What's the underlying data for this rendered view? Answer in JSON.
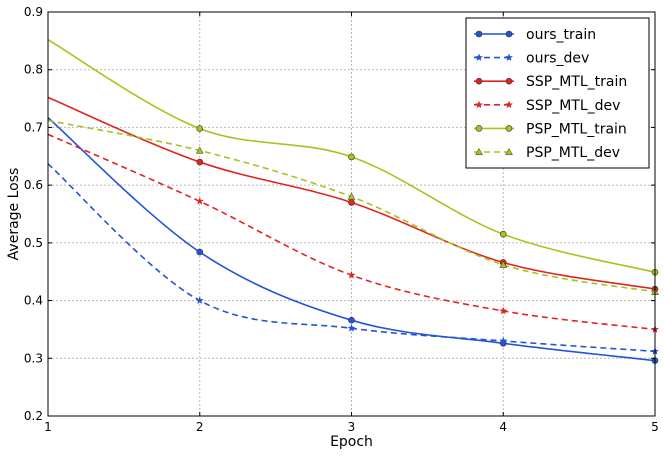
{
  "chart_data": {
    "type": "line",
    "title": "",
    "xlabel": "Epoch",
    "ylabel": "Average Loss",
    "xlim": [
      1,
      5
    ],
    "ylim": [
      0.2,
      0.9
    ],
    "xticks": [
      1,
      2,
      3,
      4,
      5
    ],
    "xtick_labels": [
      "1",
      "2",
      "3",
      "4",
      "5"
    ],
    "yticks": [
      0.2,
      0.3,
      0.4,
      0.5,
      0.6,
      0.7,
      0.8,
      0.9
    ],
    "ytick_labels": [
      "0.2",
      "0.3",
      "0.4",
      "0.5",
      "0.6",
      "0.7",
      "0.8",
      "0.9"
    ],
    "grid": true,
    "legend_position": "top-right",
    "x": [
      1,
      2,
      3,
      4,
      5
    ],
    "series": [
      {
        "name": "ours_train",
        "color": "#2154d6",
        "dash": "solid",
        "marker": "circle",
        "values": [
          0.717,
          0.484,
          0.366,
          0.326,
          0.296
        ]
      },
      {
        "name": "ours_dev",
        "color": "#2154d6",
        "dash": "dashed",
        "marker": "star",
        "values": [
          0.637,
          0.4,
          0.352,
          0.33,
          0.312
        ]
      },
      {
        "name": "SSP_MTL_train",
        "color": "#e02424",
        "dash": "solid",
        "marker": "circle",
        "values": [
          0.752,
          0.64,
          0.57,
          0.466,
          0.42
        ]
      },
      {
        "name": "SSP_MTL_dev",
        "color": "#e02424",
        "dash": "dashed",
        "marker": "star",
        "values": [
          0.688,
          0.572,
          0.444,
          0.382,
          0.35
        ]
      },
      {
        "name": "PSP_MTL_train",
        "color": "#a9c21c",
        "dash": "solid",
        "marker": "circle",
        "values": [
          0.852,
          0.698,
          0.649,
          0.515,
          0.449
        ]
      },
      {
        "name": "PSP_MTL_dev",
        "color": "#a9c21c",
        "dash": "dashed",
        "marker": "triangle",
        "values": [
          0.712,
          0.66,
          0.58,
          0.462,
          0.415
        ]
      }
    ]
  }
}
